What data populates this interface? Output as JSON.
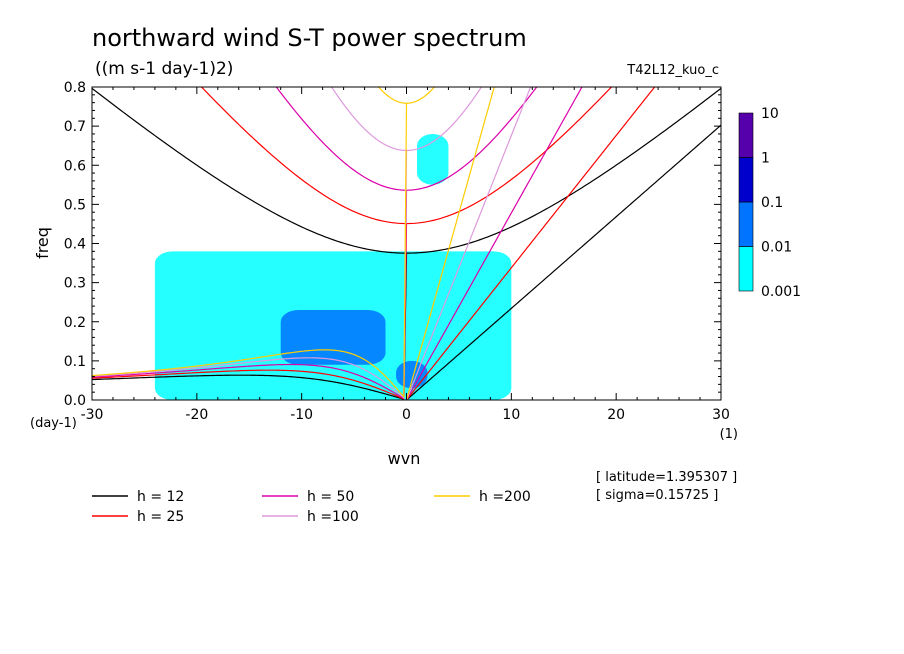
{
  "chart_data": {
    "type": "heatmap",
    "title": "northward wind S-T power spectrum",
    "subtitle": "((m s-1 day-1)2)",
    "run_label": "T42L12_kuo_c",
    "xlabel": "wvn",
    "ylabel": "freq",
    "x_unit": "(1)",
    "y_unit": "(day-1)",
    "xlim": [
      -30,
      30
    ],
    "ylim": [
      0,
      0.8
    ],
    "x_ticks": [
      -30,
      -20,
      -10,
      0,
      10,
      20,
      30
    ],
    "x_tick_labels": [
      "-30",
      "-20",
      "-10",
      "0",
      "10",
      "20",
      "30"
    ],
    "y_ticks": [
      0,
      0.1,
      0.2,
      0.3,
      0.4,
      0.5,
      0.6,
      0.7,
      0.8
    ],
    "y_tick_labels": [
      "0.0",
      "0.1",
      "0.2",
      "0.3",
      "0.4",
      "0.5",
      "0.6",
      "0.7",
      "0.8"
    ],
    "colorbar": {
      "levels": [
        0.001,
        0.01,
        0.1,
        1,
        10
      ],
      "labels": [
        "0.001",
        "0.01",
        "0.1",
        "1",
        "10"
      ],
      "colors": [
        "#00ffff",
        "#0073ff",
        "#0000cc",
        "#5500aa"
      ]
    },
    "contour_regions": [
      {
        "level": 0.001,
        "color": "#00ffff",
        "x": [
          -24,
          10
        ],
        "y": [
          0.0,
          0.38
        ]
      },
      {
        "level": 0.001,
        "color": "#00ffff",
        "x": [
          1,
          4
        ],
        "y": [
          0.55,
          0.68
        ]
      },
      {
        "level": 0.01,
        "color": "#0073ff",
        "x": [
          -12,
          -2
        ],
        "y": [
          0.09,
          0.23
        ]
      },
      {
        "level": 0.01,
        "color": "#0073ff",
        "x": [
          -1,
          2
        ],
        "y": [
          0.03,
          0.1
        ]
      }
    ],
    "series": [
      {
        "name": "h = 12",
        "color": "#000000",
        "equivalent_depth": 12
      },
      {
        "name": "h = 25",
        "color": "#ff0000",
        "equivalent_depth": 25
      },
      {
        "name": "h = 50",
        "color": "#dd00aa",
        "equivalent_depth": 50
      },
      {
        "name": "h =100",
        "color": "#dd99dd",
        "equivalent_depth": 100
      },
      {
        "name": "h =200",
        "color": "#ffcc00",
        "equivalent_depth": 200
      }
    ],
    "info": {
      "latitude": "[ latitude=1.395307 ]",
      "sigma": "[ sigma=0.15725 ]"
    }
  }
}
